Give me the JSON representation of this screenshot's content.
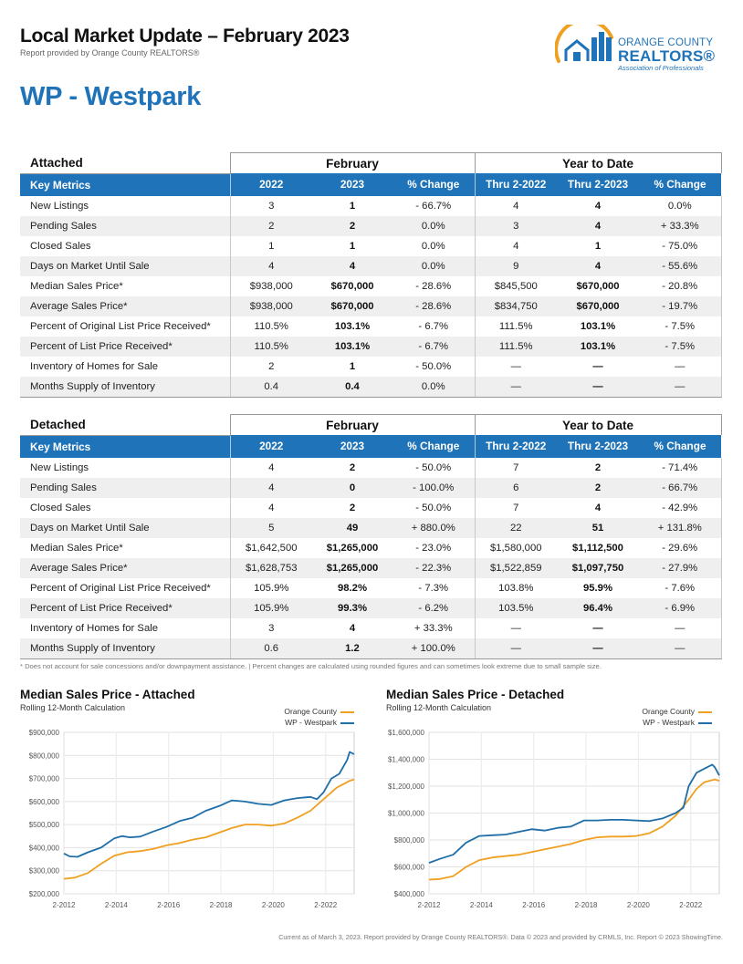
{
  "header": {
    "title": "Local Market Update – February 2023",
    "subtitle": "Report provided by Orange County REALTORS®"
  },
  "logo": {
    "line1": "ORANGE COUNTY",
    "line2": "REALTORS®",
    "line3": "Association of Professionals",
    "colors": {
      "orange": "#f0a020",
      "blue": "#1f73b8"
    }
  },
  "area_title": "WP - Westpark",
  "colors": {
    "accent": "#1f73b8",
    "orange_county": "#f0a020",
    "westpark": "#1f6ea8"
  },
  "attached": {
    "section_label": "Attached",
    "group_february": "February",
    "group_ytd": "Year to Date",
    "columns": [
      "Key Metrics",
      "2022",
      "2023",
      "% Change",
      "Thru 2-2022",
      "Thru 2-2023",
      "% Change"
    ],
    "rows": [
      [
        "New Listings",
        "3",
        "1",
        "- 66.7%",
        "4",
        "4",
        "0.0%"
      ],
      [
        "Pending Sales",
        "2",
        "2",
        "0.0%",
        "3",
        "4",
        "+ 33.3%"
      ],
      [
        "Closed Sales",
        "1",
        "1",
        "0.0%",
        "4",
        "1",
        "- 75.0%"
      ],
      [
        "Days on Market Until Sale",
        "4",
        "4",
        "0.0%",
        "9",
        "4",
        "- 55.6%"
      ],
      [
        "Median Sales Price*",
        "$938,000",
        "$670,000",
        "- 28.6%",
        "$845,500",
        "$670,000",
        "- 20.8%"
      ],
      [
        "Average Sales Price*",
        "$938,000",
        "$670,000",
        "- 28.6%",
        "$834,750",
        "$670,000",
        "- 19.7%"
      ],
      [
        "Percent of Original List Price Received*",
        "110.5%",
        "103.1%",
        "- 6.7%",
        "111.5%",
        "103.1%",
        "- 7.5%"
      ],
      [
        "Percent of List Price Received*",
        "110.5%",
        "103.1%",
        "- 6.7%",
        "111.5%",
        "103.1%",
        "- 7.5%"
      ],
      [
        "Inventory of Homes for Sale",
        "2",
        "1",
        "- 50.0%",
        "—",
        "—",
        "—"
      ],
      [
        "Months Supply of Inventory",
        "0.4",
        "0.4",
        "0.0%",
        "—",
        "—",
        "—"
      ]
    ]
  },
  "detached": {
    "section_label": "Detached",
    "group_february": "February",
    "group_ytd": "Year to Date",
    "columns": [
      "Key Metrics",
      "2022",
      "2023",
      "% Change",
      "Thru 2-2022",
      "Thru 2-2023",
      "% Change"
    ],
    "rows": [
      [
        "New Listings",
        "4",
        "2",
        "- 50.0%",
        "7",
        "2",
        "- 71.4%"
      ],
      [
        "Pending Sales",
        "4",
        "0",
        "- 100.0%",
        "6",
        "2",
        "- 66.7%"
      ],
      [
        "Closed Sales",
        "4",
        "2",
        "- 50.0%",
        "7",
        "4",
        "- 42.9%"
      ],
      [
        "Days on Market Until Sale",
        "5",
        "49",
        "+ 880.0%",
        "22",
        "51",
        "+ 131.8%"
      ],
      [
        "Median Sales Price*",
        "$1,642,500",
        "$1,265,000",
        "- 23.0%",
        "$1,580,000",
        "$1,112,500",
        "- 29.6%"
      ],
      [
        "Average Sales Price*",
        "$1,628,753",
        "$1,265,000",
        "- 22.3%",
        "$1,522,859",
        "$1,097,750",
        "- 27.9%"
      ],
      [
        "Percent of Original List Price Received*",
        "105.9%",
        "98.2%",
        "- 7.3%",
        "103.8%",
        "95.9%",
        "- 7.6%"
      ],
      [
        "Percent of List Price Received*",
        "105.9%",
        "99.3%",
        "- 6.2%",
        "103.5%",
        "96.4%",
        "- 6.9%"
      ],
      [
        "Inventory of Homes for Sale",
        "3",
        "4",
        "+ 33.3%",
        "—",
        "—",
        "—"
      ],
      [
        "Months Supply of Inventory",
        "0.6",
        "1.2",
        "+ 100.0%",
        "—",
        "—",
        "—"
      ]
    ]
  },
  "footnote": "* Does not account for sale concessions and/or downpayment assistance.  |  Percent changes are calculated using rounded figures and can sometimes look extreme due to small sample size.",
  "chart_data": [
    {
      "type": "line",
      "title": "Median Sales Price - Attached",
      "subtitle": "Rolling 12-Month Calculation",
      "x_tick_labels": [
        "2-2012",
        "2-2014",
        "2-2016",
        "2-2018",
        "2-2020",
        "2-2022"
      ],
      "y_tick_labels": [
        "$900,000",
        "$800,000",
        "$700,000",
        "$600,000",
        "$500,000",
        "$400,000",
        "$300,000",
        "$200,000"
      ],
      "ylim": [
        200000,
        900000
      ],
      "xlim": [
        2012.08,
        2023.17
      ],
      "grid": true,
      "legend_position": "top-right",
      "series": [
        {
          "name": "Orange County",
          "color": "#f0a020",
          "x": [
            2012.08,
            2012.5,
            2013.0,
            2013.5,
            2014.0,
            2014.5,
            2015.0,
            2015.5,
            2016.0,
            2016.5,
            2017.0,
            2017.5,
            2018.0,
            2018.5,
            2019.0,
            2019.5,
            2020.0,
            2020.5,
            2021.0,
            2021.5,
            2022.0,
            2022.5,
            2023.0,
            2023.17
          ],
          "y": [
            265000,
            270000,
            290000,
            330000,
            365000,
            380000,
            385000,
            395000,
            410000,
            420000,
            435000,
            445000,
            465000,
            485000,
            500000,
            500000,
            495000,
            505000,
            530000,
            560000,
            610000,
            660000,
            690000,
            695000
          ]
        },
        {
          "name": "WP - Westpark",
          "color": "#1f6ea8",
          "x": [
            2012.08,
            2012.3,
            2012.6,
            2013.0,
            2013.5,
            2014.0,
            2014.3,
            2014.6,
            2015.0,
            2015.5,
            2016.0,
            2016.5,
            2017.0,
            2017.5,
            2018.0,
            2018.5,
            2019.0,
            2019.5,
            2020.0,
            2020.5,
            2021.0,
            2021.5,
            2021.75,
            2022.0,
            2022.3,
            2022.6,
            2022.9,
            2023.0,
            2023.17
          ],
          "y": [
            375000,
            362000,
            360000,
            380000,
            400000,
            440000,
            450000,
            445000,
            448000,
            470000,
            490000,
            515000,
            530000,
            560000,
            580000,
            605000,
            600000,
            590000,
            585000,
            605000,
            615000,
            620000,
            610000,
            640000,
            700000,
            720000,
            780000,
            815000,
            805000
          ]
        }
      ]
    },
    {
      "type": "line",
      "title": "Median Sales Price - Detached",
      "subtitle": "Rolling 12-Month Calculation",
      "x_tick_labels": [
        "2-2012",
        "2-2014",
        "2-2016",
        "2-2018",
        "2-2020",
        "2-2022"
      ],
      "y_tick_labels": [
        "$1,600,000",
        "$1,400,000",
        "$1,200,000",
        "$1,000,000",
        "$800,000",
        "$600,000",
        "$400,000"
      ],
      "ylim": [
        400000,
        1600000
      ],
      "xlim": [
        2012.08,
        2023.17
      ],
      "grid": true,
      "legend_position": "top-right",
      "series": [
        {
          "name": "Orange County",
          "color": "#f0a020",
          "x": [
            2012.08,
            2012.5,
            2013.0,
            2013.5,
            2014.0,
            2014.5,
            2015.0,
            2015.5,
            2016.0,
            2016.5,
            2017.0,
            2017.5,
            2018.0,
            2018.5,
            2019.0,
            2019.5,
            2020.0,
            2020.5,
            2021.0,
            2021.5,
            2022.0,
            2022.3,
            2022.6,
            2023.0,
            2023.17
          ],
          "y": [
            505000,
            510000,
            530000,
            600000,
            650000,
            670000,
            680000,
            690000,
            710000,
            730000,
            750000,
            770000,
            800000,
            820000,
            825000,
            825000,
            830000,
            850000,
            900000,
            980000,
            1100000,
            1180000,
            1230000,
            1250000,
            1240000
          ]
        },
        {
          "name": "WP - Westpark",
          "color": "#1f6ea8",
          "x": [
            2012.08,
            2012.5,
            2013.0,
            2013.5,
            2014.0,
            2014.5,
            2015.0,
            2015.5,
            2016.0,
            2016.5,
            2017.0,
            2017.5,
            2018.0,
            2018.5,
            2019.0,
            2019.5,
            2020.0,
            2020.5,
            2021.0,
            2021.5,
            2021.8,
            2022.0,
            2022.3,
            2022.6,
            2022.9,
            2023.0,
            2023.17
          ],
          "y": [
            630000,
            660000,
            690000,
            780000,
            830000,
            835000,
            840000,
            860000,
            880000,
            870000,
            890000,
            900000,
            945000,
            945000,
            950000,
            950000,
            945000,
            940000,
            960000,
            1000000,
            1040000,
            1200000,
            1300000,
            1330000,
            1360000,
            1340000,
            1280000
          ]
        }
      ]
    }
  ],
  "credit": "Current as of March 3, 2023. Report provided by Orange County REALTORS®. Data © 2023 and provided by CRMLS, Inc. Report © 2023 ShowingTime."
}
